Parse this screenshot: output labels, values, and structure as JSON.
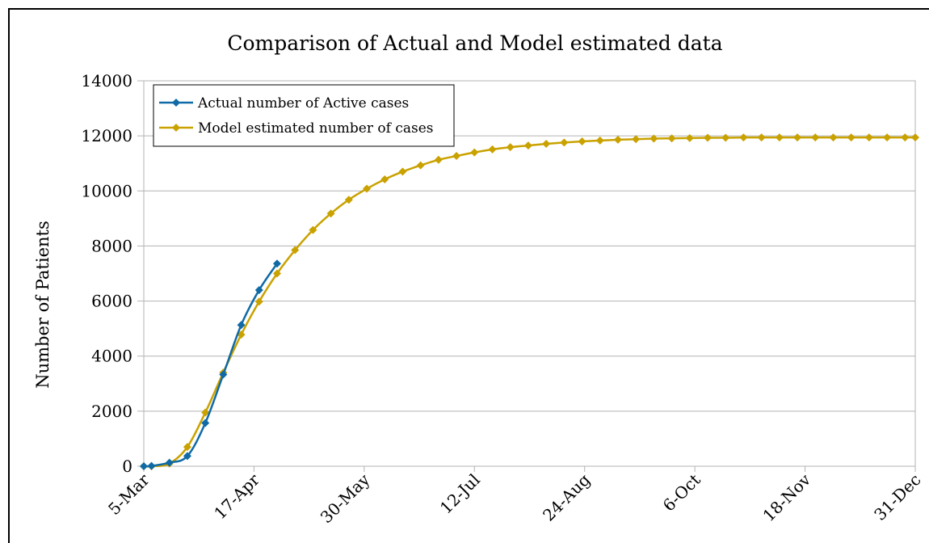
{
  "chart_data": {
    "type": "line",
    "title": "Comparison of Actual and Model estimated data",
    "y_label": "Number of Patients",
    "xlim": [
      0,
      301
    ],
    "xticks": [
      {
        "value": 0,
        "label": "5-Mar"
      },
      {
        "value": 43,
        "label": "17-Apr"
      },
      {
        "value": 86,
        "label": "30-May"
      },
      {
        "value": 129,
        "label": "12-Jul"
      },
      {
        "value": 172,
        "label": "24-Aug"
      },
      {
        "value": 215,
        "label": "6-Oct"
      },
      {
        "value": 258,
        "label": "18-Nov"
      },
      {
        "value": 301,
        "label": "31-Dec"
      }
    ],
    "ylim": [
      0,
      14000
    ],
    "yticks": [
      0,
      2000,
      4000,
      6000,
      8000,
      10000,
      12000,
      14000
    ],
    "grid": true,
    "legend": "upper left",
    "series": [
      {
        "name": "Actual number of Active cases",
        "color": "#0f6aa6",
        "x": [
          0,
          3,
          10,
          17,
          24,
          31,
          38,
          45,
          52
        ],
        "values": [
          0,
          10,
          130,
          370,
          1570,
          3330,
          5130,
          6400,
          7360
        ]
      },
      {
        "name": "Model estimated number of cases",
        "color": "#c9a200",
        "x": [
          0,
          3,
          10,
          17,
          24,
          31,
          38,
          45,
          52,
          59,
          66,
          73,
          80,
          87,
          94,
          101,
          108,
          115,
          122,
          129,
          136,
          143,
          150,
          157,
          164,
          171,
          178,
          185,
          192,
          199,
          206,
          213,
          220,
          227,
          234,
          241,
          248,
          255,
          262,
          269,
          276,
          283,
          290,
          297,
          301
        ],
        "values": [
          0,
          0,
          100,
          700,
          1950,
          3400,
          4780,
          5980,
          7000,
          7850,
          8580,
          9180,
          9680,
          10080,
          10420,
          10700,
          10930,
          11130,
          11270,
          11400,
          11510,
          11590,
          11650,
          11710,
          11760,
          11800,
          11830,
          11860,
          11880,
          11900,
          11910,
          11920,
          11930,
          11930,
          11940,
          11940,
          11940,
          11940,
          11940,
          11940,
          11940,
          11940,
          11940,
          11940,
          11940
        ]
      }
    ]
  }
}
